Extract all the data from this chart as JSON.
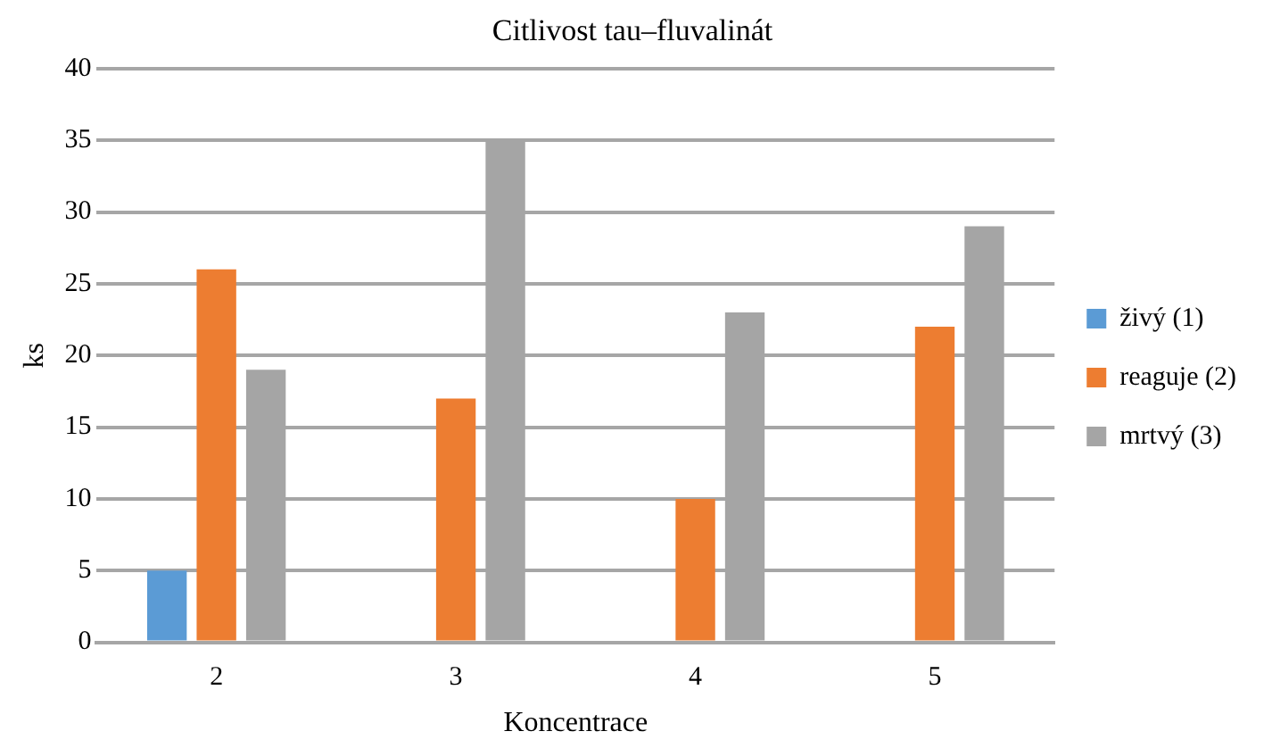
{
  "chart_data": {
    "type": "bar",
    "title": "Citlivost tau–fluvalinát",
    "xlabel": "Koncentrace",
    "ylabel": "ks",
    "categories": [
      "2",
      "3",
      "4",
      "5"
    ],
    "series": [
      {
        "name": "živý (1)",
        "color": "#5b9bd5",
        "values": [
          5,
          0,
          0,
          0
        ]
      },
      {
        "name": "reaguje (2)",
        "color": "#ed7d31",
        "values": [
          26,
          17,
          10,
          22
        ]
      },
      {
        "name": "mrtvý (3)",
        "color": "#a5a5a5",
        "values": [
          19,
          35,
          23,
          29
        ]
      }
    ],
    "ylim": [
      0,
      40
    ],
    "yticks": [
      0,
      5,
      10,
      15,
      20,
      25,
      30,
      35,
      40
    ],
    "grid": "y",
    "legend": "right"
  }
}
